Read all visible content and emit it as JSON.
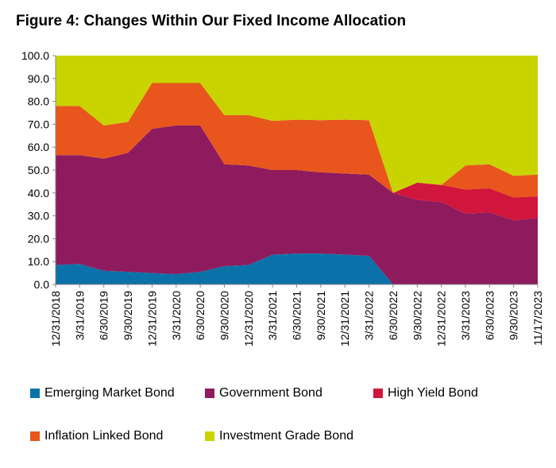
{
  "title": "Figure 4: Changes Within Our Fixed Income Allocation",
  "chart_data": {
    "type": "area",
    "stacked": true,
    "x": [
      "12/31/2018",
      "3/31/2019",
      "6/30/2019",
      "9/30/2019",
      "12/31/2019",
      "3/31/2020",
      "6/30/2020",
      "9/30/2020",
      "12/31/2020",
      "3/31/2021",
      "6/30/2021",
      "9/30/2021",
      "12/31/2021",
      "3/31/2022",
      "6/30/2022",
      "9/30/2022",
      "12/31/2022",
      "3/31/2023",
      "6/30/2023",
      "9/30/2023",
      "11/17/2023"
    ],
    "series": [
      {
        "name": "Emerging Market Bond",
        "color": "#0a72a8",
        "values": [
          8.5,
          9.0,
          6.0,
          5.5,
          5.0,
          4.5,
          5.5,
          8.0,
          8.5,
          13.0,
          13.5,
          13.5,
          13.0,
          12.5,
          0.0,
          0.0,
          0.0,
          0.0,
          0.0,
          0.0,
          0.0
        ]
      },
      {
        "name": "Government Bond",
        "color": "#8e1b5e",
        "values": [
          48.0,
          47.5,
          49.0,
          52.0,
          63.0,
          65.0,
          64.0,
          44.5,
          43.5,
          37.0,
          36.5,
          35.5,
          35.5,
          35.5,
          40.0,
          37.0,
          36.0,
          31.0,
          31.5,
          28.0,
          29.0
        ]
      },
      {
        "name": "High Yield Bond",
        "color": "#d0163c",
        "values": [
          0.0,
          0.0,
          0.0,
          0.0,
          0.0,
          0.0,
          0.0,
          0.0,
          0.0,
          0.0,
          0.0,
          0.0,
          0.0,
          0.0,
          0.0,
          7.5,
          7.5,
          10.5,
          10.5,
          10.0,
          9.5
        ]
      },
      {
        "name": "Inflation Linked Bond",
        "color": "#e8561d",
        "values": [
          21.5,
          21.5,
          14.5,
          13.5,
          20.0,
          18.5,
          18.5,
          21.5,
          22.0,
          21.5,
          22.0,
          22.8,
          23.5,
          23.8,
          0.0,
          0.0,
          0.0,
          10.5,
          10.5,
          9.5,
          9.5
        ]
      },
      {
        "name": "Investment Grade Bond",
        "color": "#c9d300",
        "values": [
          22.0,
          22.0,
          30.5,
          29.0,
          12.0,
          12.0,
          12.0,
          26.0,
          26.0,
          28.5,
          28.0,
          28.2,
          28.0,
          28.2,
          60.0,
          55.5,
          56.5,
          48.0,
          47.5,
          52.5,
          52.0
        ]
      }
    ],
    "yticks": [
      "0.0",
      "10.0",
      "20.0",
      "30.0",
      "40.0",
      "50.0",
      "60.0",
      "70.0",
      "80.0",
      "90.0",
      "100.0"
    ],
    "ylim": [
      0,
      100
    ],
    "grid": false,
    "legend_position": "bottom"
  }
}
